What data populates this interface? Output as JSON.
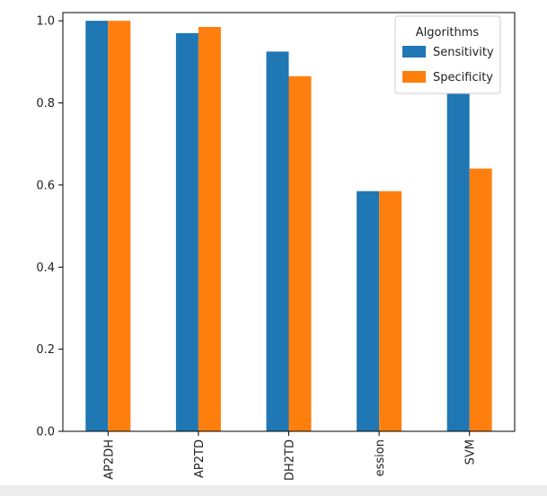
{
  "chart_data": {
    "type": "bar",
    "categories": [
      "AP2DH",
      "AP2TD",
      "DH2TD",
      "ession",
      "SVM"
    ],
    "series": [
      {
        "name": "Sensitivity",
        "values": [
          1.0,
          0.97,
          0.925,
          0.585,
          0.845
        ]
      },
      {
        "name": "Specificity",
        "values": [
          1.0,
          0.985,
          0.865,
          0.585,
          0.64
        ]
      }
    ],
    "ylim": [
      0,
      1.02
    ],
    "yticks": [
      "0.0",
      "0.2",
      "0.4",
      "0.6",
      "0.8",
      "1.0"
    ],
    "legend": {
      "title": "Algorithms",
      "position": "top-right"
    },
    "colors": {
      "Sensitivity": "#1f77b4",
      "Specificity": "#ff7f0e"
    },
    "grid": false
  }
}
